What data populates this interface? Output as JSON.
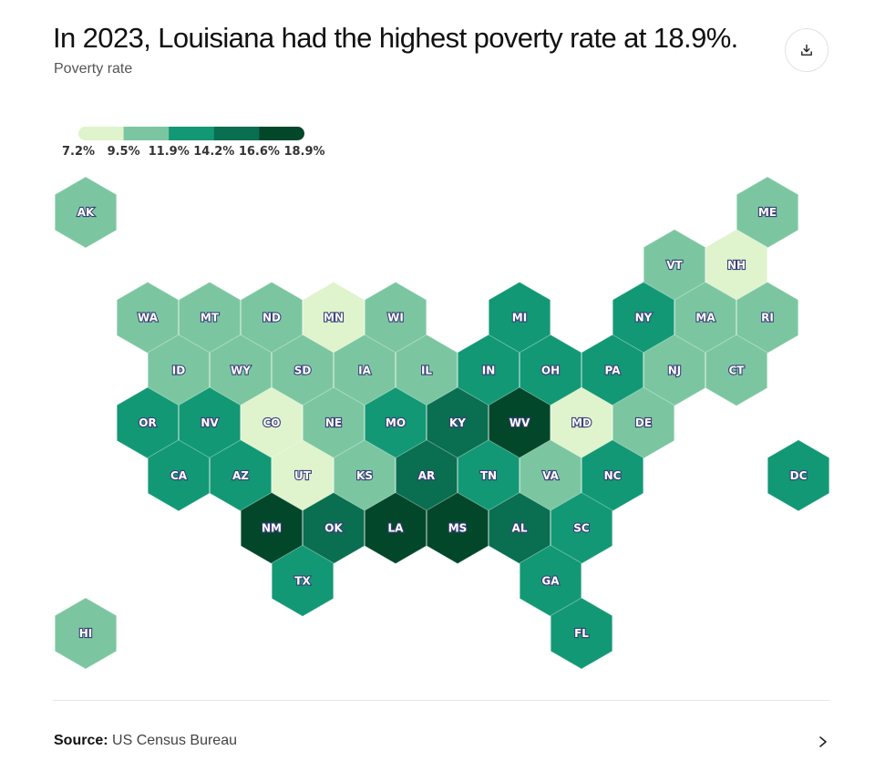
{
  "header": {
    "title": "In 2023, Louisiana had the highest poverty rate at 18.9%.",
    "subtitle": "Poverty rate",
    "download_icon": "download-icon"
  },
  "footer": {
    "source_label": "Source:",
    "source_value": "US Census Bureau",
    "chevron_icon": "chevron-right-icon"
  },
  "chart_data": {
    "type": "heatmap",
    "subtype": "hex-tile-map",
    "title": "In 2023, Louisiana had the highest poverty rate at 18.9%.",
    "subtitle": "Poverty rate",
    "legend": {
      "placement": "top-left",
      "breaks": [
        "7.2%",
        "9.5%",
        "11.9%",
        "14.2%",
        "16.6%",
        "18.9%"
      ],
      "colors": [
        "#dff3cc",
        "#7bc6a0",
        "#129874",
        "#0a6e50",
        "#02472a"
      ]
    },
    "bin_ranges": [
      "7.2%–9.5%",
      "9.5%–11.9%",
      "11.9%–14.2%",
      "14.2%–16.6%",
      "16.6%–18.9%"
    ],
    "states": [
      {
        "state": "AK",
        "bin": 1
      },
      {
        "state": "ME",
        "bin": 1
      },
      {
        "state": "VT",
        "bin": 1
      },
      {
        "state": "NH",
        "bin": 0
      },
      {
        "state": "WA",
        "bin": 1
      },
      {
        "state": "MT",
        "bin": 1
      },
      {
        "state": "ND",
        "bin": 1
      },
      {
        "state": "MN",
        "bin": 0
      },
      {
        "state": "WI",
        "bin": 1
      },
      {
        "state": "MI",
        "bin": 2
      },
      {
        "state": "NY",
        "bin": 2
      },
      {
        "state": "MA",
        "bin": 1
      },
      {
        "state": "RI",
        "bin": 1
      },
      {
        "state": "ID",
        "bin": 1
      },
      {
        "state": "WY",
        "bin": 1
      },
      {
        "state": "SD",
        "bin": 1
      },
      {
        "state": "IA",
        "bin": 1
      },
      {
        "state": "IL",
        "bin": 1
      },
      {
        "state": "IN",
        "bin": 2
      },
      {
        "state": "OH",
        "bin": 2
      },
      {
        "state": "PA",
        "bin": 2
      },
      {
        "state": "NJ",
        "bin": 1
      },
      {
        "state": "CT",
        "bin": 1
      },
      {
        "state": "OR",
        "bin": 2
      },
      {
        "state": "NV",
        "bin": 2
      },
      {
        "state": "CO",
        "bin": 0
      },
      {
        "state": "NE",
        "bin": 1
      },
      {
        "state": "MO",
        "bin": 2
      },
      {
        "state": "KY",
        "bin": 3
      },
      {
        "state": "WV",
        "bin": 4
      },
      {
        "state": "MD",
        "bin": 0
      },
      {
        "state": "DE",
        "bin": 1
      },
      {
        "state": "CA",
        "bin": 2
      },
      {
        "state": "AZ",
        "bin": 2
      },
      {
        "state": "UT",
        "bin": 0
      },
      {
        "state": "KS",
        "bin": 1
      },
      {
        "state": "AR",
        "bin": 3
      },
      {
        "state": "TN",
        "bin": 2
      },
      {
        "state": "VA",
        "bin": 1
      },
      {
        "state": "NC",
        "bin": 2
      },
      {
        "state": "DC",
        "bin": 2
      },
      {
        "state": "NM",
        "bin": 4
      },
      {
        "state": "OK",
        "bin": 3
      },
      {
        "state": "LA",
        "bin": 4
      },
      {
        "state": "MS",
        "bin": 4
      },
      {
        "state": "AL",
        "bin": 3
      },
      {
        "state": "SC",
        "bin": 2
      },
      {
        "state": "TX",
        "bin": 2
      },
      {
        "state": "GA",
        "bin": 2
      },
      {
        "state": "HI",
        "bin": 1
      },
      {
        "state": "FL",
        "bin": 2
      }
    ]
  }
}
